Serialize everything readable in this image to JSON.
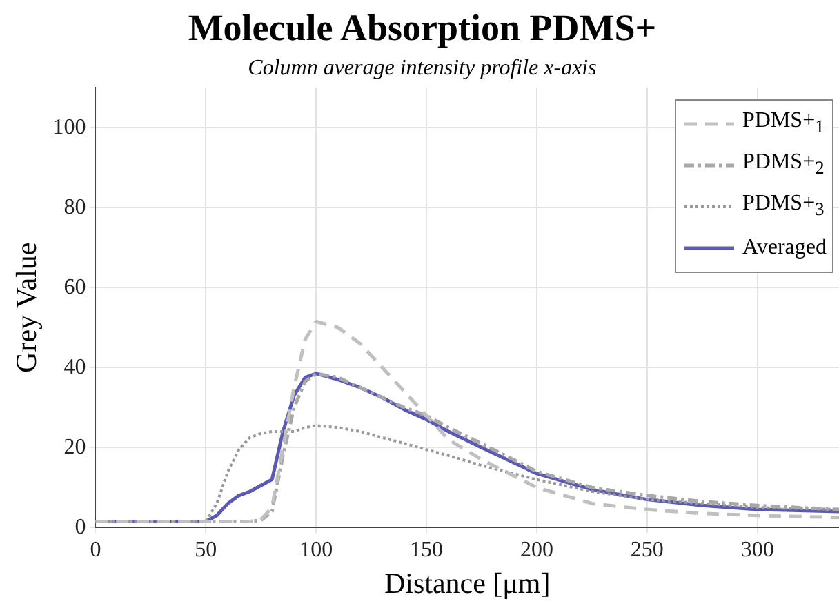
{
  "chart_data": {
    "type": "line",
    "title": "Molecule Absorption PDMS+",
    "subtitle": "Column average intensity profile x-axis",
    "xlabel": "Distance [μm]",
    "ylabel": "Grey Value",
    "x": [
      0,
      25,
      50,
      55,
      60,
      65,
      70,
      75,
      80,
      85,
      90,
      95,
      100,
      110,
      120,
      130,
      140,
      150,
      160,
      175,
      200,
      225,
      250,
      275,
      300,
      337
    ],
    "series": [
      {
        "name": "PDMS+$_{1}$",
        "color": "#c0c0c0",
        "line_style": "dashed",
        "values": [
          1.5,
          1.5,
          1.5,
          1.5,
          1.5,
          1.5,
          1.5,
          2,
          5,
          20,
          35,
          47,
          51.5,
          50,
          46,
          40,
          34,
          28,
          22,
          17,
          10,
          6,
          4.5,
          3.5,
          3,
          2.5
        ]
      },
      {
        "name": "PDMS+$_{2}$",
        "color": "#a8a8a8",
        "line_style": "dashdot",
        "values": [
          1.5,
          1.5,
          1.5,
          1.5,
          1.5,
          1.5,
          1.5,
          1.8,
          4,
          18,
          30,
          36.5,
          38.5,
          37.5,
          35,
          32.5,
          30,
          28,
          25,
          21,
          14,
          10,
          8,
          6.5,
          5.5,
          4.5
        ]
      },
      {
        "name": "PDMS+$_{3}$",
        "color": "#999999",
        "line_style": "dotted",
        "values": [
          1.5,
          1.5,
          1.5,
          6,
          14,
          19.5,
          22.5,
          23.5,
          24,
          24,
          24,
          25,
          25.5,
          25,
          24,
          22.5,
          21,
          19.5,
          18,
          15.5,
          12,
          9,
          7,
          6,
          5,
          4.5
        ]
      },
      {
        "name": "Averaged",
        "color": "#5a5ab4",
        "line_style": "solid",
        "values": [
          1.5,
          1.5,
          1.5,
          3,
          6,
          8,
          9,
          10.5,
          12,
          24,
          33,
          37.5,
          38.5,
          37,
          35,
          32.5,
          29.5,
          27,
          24,
          20,
          13.5,
          9.5,
          7,
          5.5,
          4.5,
          4
        ]
      }
    ],
    "xlim": [
      0,
      337
    ],
    "ylim": [
      0,
      110
    ],
    "xticks": [
      0,
      50,
      100,
      150,
      200,
      250,
      300
    ],
    "yticks": [
      0,
      20,
      40,
      60,
      80,
      100
    ],
    "grid": true,
    "legend": "top right"
  }
}
